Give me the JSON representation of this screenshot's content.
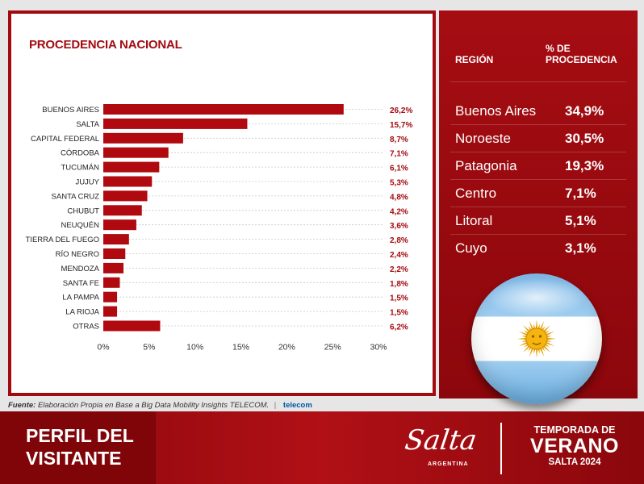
{
  "chart_data": {
    "type": "bar",
    "orientation": "horizontal",
    "title": "PROCEDENCIA NACIONAL",
    "categories": [
      "BUENOS AIRES",
      "SALTA",
      "CAPITAL FEDERAL",
      "CÓRDOBA",
      "TUCUMÁN",
      "JUJUY",
      "SANTA CRUZ",
      "CHUBUT",
      "NEUQUÉN",
      "TIERRA DEL FUEGO",
      "RÍO NEGRO",
      "MENDOZA",
      "SANTA FE",
      "LA PAMPA",
      "LA RIOJA",
      "OTRAS"
    ],
    "values": [
      26.2,
      15.7,
      8.7,
      7.1,
      6.1,
      5.3,
      4.8,
      4.2,
      3.6,
      2.8,
      2.4,
      2.2,
      1.8,
      1.5,
      1.5,
      6.2
    ],
    "value_labels": [
      "26,2%",
      "15,7%",
      "8,7%",
      "7,1%",
      "6,1%",
      "5,3%",
      "4,8%",
      "4,2%",
      "3,6%",
      "2,8%",
      "2,4%",
      "2,2%",
      "1,8%",
      "1,5%",
      "1,5%",
      "6,2%"
    ],
    "xlim": [
      0,
      30
    ],
    "xticks": [
      0,
      5,
      10,
      15,
      20,
      25,
      30
    ],
    "xtick_labels": [
      "0%",
      "5%",
      "10%",
      "15%",
      "20%",
      "25%",
      "30%"
    ],
    "bar_color": "#b00a10",
    "grid": "dashed horizontal guides"
  },
  "region_table": {
    "header_region": "REGIÓN",
    "header_pct_line1": "% DE",
    "header_pct_line2": "PROCEDENCIA",
    "rows": [
      {
        "region": "Buenos Aires",
        "pct": "34,9%"
      },
      {
        "region": "Noroeste",
        "pct": "30,5%"
      },
      {
        "region": "Patagonia",
        "pct": "19,3%"
      },
      {
        "region": "Centro",
        "pct": "7,1%"
      },
      {
        "region": "Litoral",
        "pct": "5,1%"
      },
      {
        "region": "Cuyo",
        "pct": "3,1%"
      }
    ]
  },
  "source": {
    "label": "Fuente:",
    "text": "Elaboración Propia en Base a Big Data Mobility Insights TELECOM.",
    "separator": "|",
    "brand": "telecom"
  },
  "footer": {
    "title_line1": "PERFIL DEL",
    "title_line2": "VISITANTE",
    "logo_script": "Salta",
    "logo_sub": "ARGENTINA",
    "season_line1": "TEMPORADA DE",
    "season_line2": "VERANO",
    "season_line3": "SALTA 2024"
  },
  "flag": {
    "icon": "argentina-flag-icon",
    "blue": "#74acdf",
    "sun": "#f6b40e"
  }
}
